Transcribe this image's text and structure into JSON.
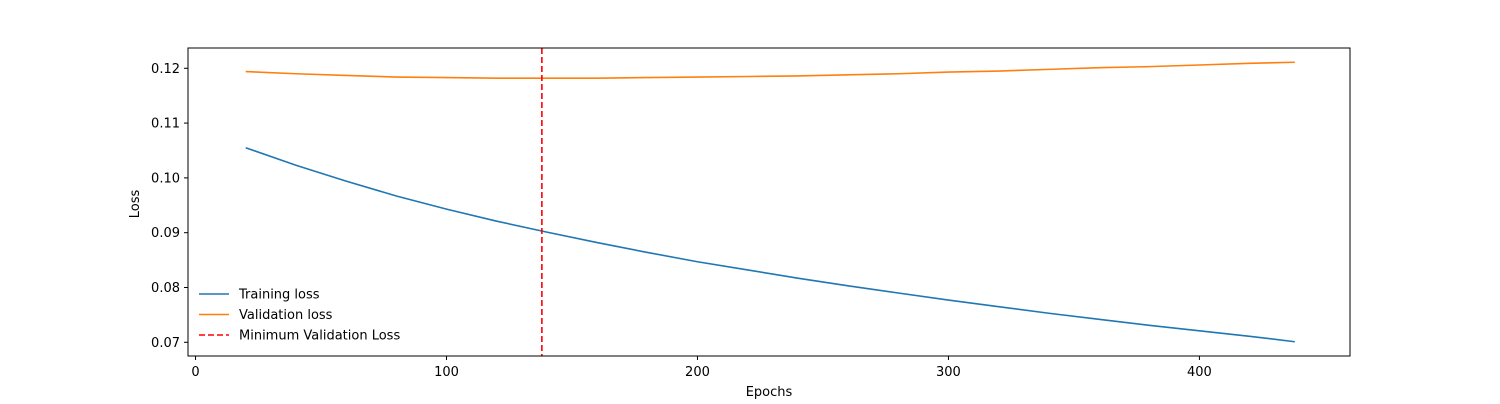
{
  "chart_data": {
    "type": "line",
    "title": "",
    "xlabel": "Epochs",
    "ylabel": "Loss",
    "xlim": [
      -3,
      460
    ],
    "ylim": [
      0.0675,
      0.1237
    ],
    "xticks": [
      0,
      100,
      200,
      300,
      400
    ],
    "yticks": [
      0.07,
      0.08,
      0.09,
      0.1,
      0.11,
      0.12
    ],
    "ytick_labels": [
      "0.07",
      "0.08",
      "0.09",
      "0.10",
      "0.11",
      "0.12"
    ],
    "grid": false,
    "legend_position": "lower-left",
    "series": [
      {
        "name": "Training loss",
        "color": "#1f77b4",
        "style": "solid",
        "x": [
          20,
          40,
          60,
          80,
          100,
          120,
          140,
          160,
          180,
          200,
          220,
          240,
          260,
          280,
          300,
          320,
          340,
          360,
          380,
          400,
          420,
          438
        ],
        "y": [
          0.1055,
          0.1023,
          0.0994,
          0.0967,
          0.0943,
          0.0921,
          0.0901,
          0.0882,
          0.0864,
          0.0847,
          0.0832,
          0.0817,
          0.0803,
          0.079,
          0.0777,
          0.0765,
          0.0753,
          0.0742,
          0.0731,
          0.0721,
          0.0711,
          0.0701
        ]
      },
      {
        "name": "Validation loss",
        "color": "#ff7f0e",
        "style": "solid",
        "x": [
          20,
          40,
          60,
          80,
          100,
          120,
          140,
          160,
          180,
          200,
          220,
          240,
          260,
          280,
          300,
          320,
          340,
          360,
          380,
          400,
          420,
          438
        ],
        "y": [
          0.1194,
          0.119,
          0.1187,
          0.1184,
          0.1183,
          0.1182,
          0.1182,
          0.1182,
          0.1183,
          0.1184,
          0.1185,
          0.1186,
          0.1188,
          0.119,
          0.1193,
          0.1195,
          0.1198,
          0.1201,
          0.1203,
          0.1206,
          0.1209,
          0.1211
        ]
      }
    ],
    "vlines": [
      {
        "name": "Minimum Validation Loss",
        "x": 138,
        "color": "#ff0000",
        "style": "dashed"
      }
    ]
  }
}
